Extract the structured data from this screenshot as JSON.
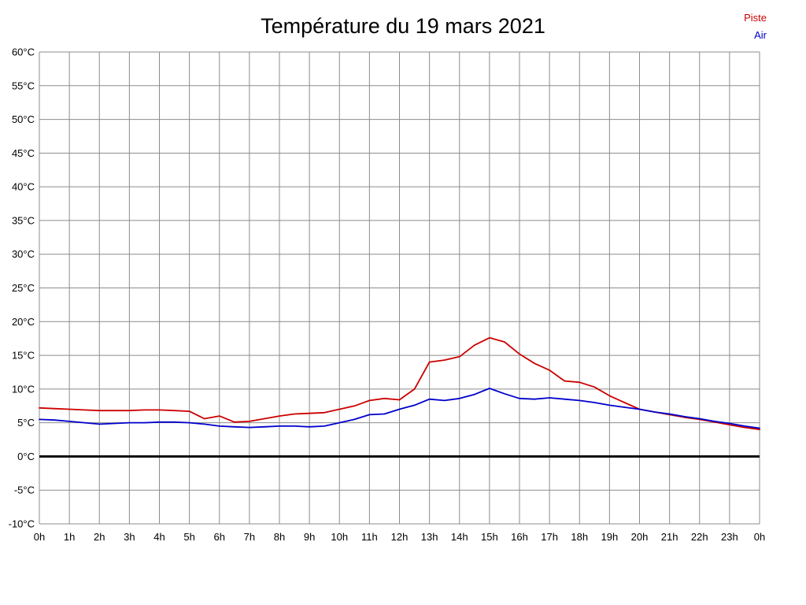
{
  "title": "Température du 19 mars 2021",
  "legend": [
    {
      "label": "Piste",
      "color": "#cc0000"
    },
    {
      "label": "Air",
      "color": "#0000cc"
    }
  ],
  "chart_data": {
    "type": "line",
    "title": "Température du 19 mars 2021",
    "xlabel": "",
    "ylabel": "",
    "xlim": [
      0,
      24
    ],
    "ylim": [
      -10,
      60
    ],
    "grid": true,
    "grid_color": "#8c8c8c",
    "legend_position": "top-right",
    "zero_line": {
      "value": 0,
      "color": "#000000",
      "width": 2.8
    },
    "yticks": [
      {
        "value": 60,
        "label": "60°C"
      },
      {
        "value": 55,
        "label": "55°C"
      },
      {
        "value": 50,
        "label": "50°C"
      },
      {
        "value": 45,
        "label": "45°C"
      },
      {
        "value": 40,
        "label": "40°C"
      },
      {
        "value": 35,
        "label": "35°C"
      },
      {
        "value": 30,
        "label": "30°C"
      },
      {
        "value": 25,
        "label": "25°C"
      },
      {
        "value": 20,
        "label": "20°C"
      },
      {
        "value": 15,
        "label": "15°C"
      },
      {
        "value": 10,
        "label": "10°C"
      },
      {
        "value": 5,
        "label": "5°C"
      },
      {
        "value": 0,
        "label": "0°C"
      },
      {
        "value": -5,
        "label": "-5°C"
      },
      {
        "value": -10,
        "label": "-10°C"
      }
    ],
    "xticks": [
      {
        "value": 0,
        "label": "0h"
      },
      {
        "value": 1,
        "label": "1h"
      },
      {
        "value": 2,
        "label": "2h"
      },
      {
        "value": 3,
        "label": "3h"
      },
      {
        "value": 4,
        "label": "4h"
      },
      {
        "value": 5,
        "label": "5h"
      },
      {
        "value": 6,
        "label": "6h"
      },
      {
        "value": 7,
        "label": "7h"
      },
      {
        "value": 8,
        "label": "8h"
      },
      {
        "value": 9,
        "label": "9h"
      },
      {
        "value": 10,
        "label": "10h"
      },
      {
        "value": 11,
        "label": "11h"
      },
      {
        "value": 12,
        "label": "12h"
      },
      {
        "value": 13,
        "label": "13h"
      },
      {
        "value": 14,
        "label": "14h"
      },
      {
        "value": 15,
        "label": "15h"
      },
      {
        "value": 16,
        "label": "16h"
      },
      {
        "value": 17,
        "label": "17h"
      },
      {
        "value": 18,
        "label": "18h"
      },
      {
        "value": 19,
        "label": "19h"
      },
      {
        "value": 20,
        "label": "20h"
      },
      {
        "value": 21,
        "label": "21h"
      },
      {
        "value": 22,
        "label": "22h"
      },
      {
        "value": 23,
        "label": "23h"
      },
      {
        "value": 24,
        "label": "0h"
      }
    ],
    "x": [
      0,
      0.5,
      1,
      1.5,
      2,
      2.5,
      3,
      3.5,
      4,
      4.5,
      5,
      5.5,
      6,
      6.5,
      7,
      7.5,
      8,
      8.5,
      9,
      9.5,
      10,
      10.5,
      11,
      11.5,
      12,
      12.5,
      13,
      13.5,
      14,
      14.5,
      15,
      15.5,
      16,
      16.5,
      17,
      17.5,
      18,
      18.5,
      19,
      19.5,
      20,
      20.5,
      21,
      21.5,
      22,
      22.5,
      23,
      23.5,
      24
    ],
    "series": [
      {
        "name": "Piste",
        "color": "#cc0000",
        "values": [
          7.2,
          7.1,
          7.0,
          6.9,
          6.8,
          6.8,
          6.8,
          6.9,
          6.9,
          6.8,
          6.7,
          5.6,
          6.0,
          5.1,
          5.2,
          5.6,
          6.0,
          6.3,
          6.4,
          6.5,
          7.0,
          7.5,
          8.3,
          8.6,
          8.4,
          10.0,
          14.0,
          14.3,
          14.8,
          16.5,
          17.6,
          17.0,
          15.2,
          13.8,
          12.8,
          11.2,
          11.0,
          10.3,
          9.0,
          8.0,
          7.0,
          6.6,
          6.2,
          5.8,
          5.5,
          5.1,
          4.7,
          4.3,
          4.0
        ]
      },
      {
        "name": "Air",
        "color": "#0000cc",
        "values": [
          5.5,
          5.4,
          5.2,
          5.0,
          4.8,
          4.9,
          5.0,
          5.0,
          5.1,
          5.1,
          5.0,
          4.8,
          4.5,
          4.4,
          4.3,
          4.4,
          4.5,
          4.5,
          4.4,
          4.5,
          5.0,
          5.5,
          6.2,
          6.3,
          7.0,
          7.6,
          8.5,
          8.3,
          8.6,
          9.2,
          10.1,
          9.3,
          8.6,
          8.5,
          8.7,
          8.5,
          8.3,
          8.0,
          7.6,
          7.3,
          7.0,
          6.6,
          6.3,
          5.9,
          5.6,
          5.2,
          4.9,
          4.5,
          4.2
        ]
      }
    ]
  }
}
